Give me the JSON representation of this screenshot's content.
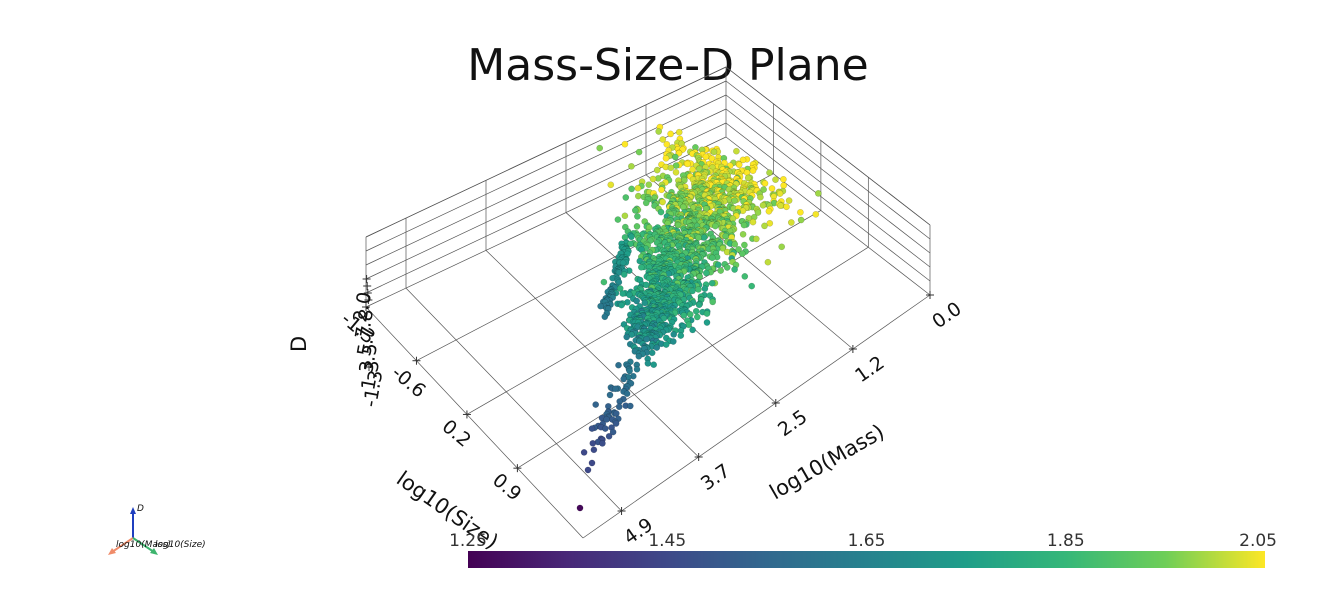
{
  "chart_data": {
    "type": "scatter",
    "title": "Mass-Size-D Plane",
    "axes": {
      "x": {
        "label": "log10(Mass)",
        "ticks": [
          "0.0",
          "1.2",
          "2.5",
          "3.7",
          "4.9"
        ],
        "range": [
          0.0,
          4.9
        ]
      },
      "y": {
        "label": "log10(Size)",
        "ticks": [
          "-1.3",
          "-0.6",
          "0.2",
          "0.9"
        ],
        "range": [
          -1.3,
          0.9
        ]
      },
      "z": {
        "label": "D",
        "ticks": [
          "-1.3",
          "1.3",
          "3.5",
          "5.7",
          "7.8",
          "2.0"
        ]
      }
    },
    "colorbar": {
      "colormap": "viridis",
      "range": [
        1.25,
        2.05
      ],
      "ticks": [
        "1.25",
        "1.45",
        "1.65",
        "1.85",
        "2.05"
      ]
    },
    "grid": true,
    "orientation_widget": {
      "labels": [
        "D",
        "log10(Mass)",
        "log10(Size)"
      ]
    }
  }
}
